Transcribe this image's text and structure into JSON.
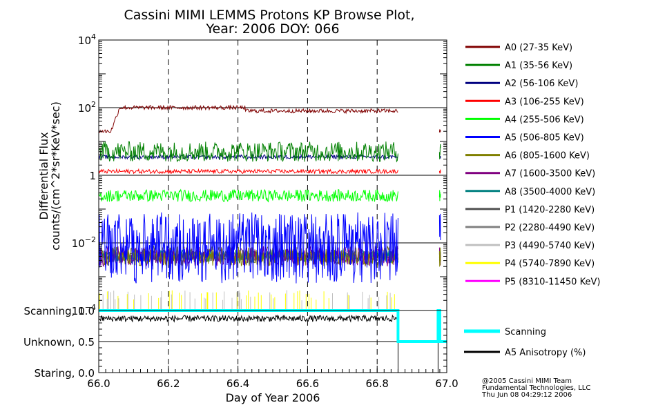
{
  "chart_data": {
    "type": "line",
    "title": [
      "Cassini MIMI LEMMS Protons KP Browse Plot,",
      "Year: 2006 DOY: 066"
    ],
    "xlabel": "Day of Year 2006",
    "xlim": [
      66.0,
      67.0
    ],
    "x_ticks": [
      "66.0",
      "66.2",
      "66.4",
      "66.6",
      "66.8",
      "67.0"
    ],
    "top_panel": {
      "ylabel": [
        "Differential Flux",
        "counts/(cm^2*sr*KeV*sec)"
      ],
      "yscale": "log",
      "ylim": [
        0.0001,
        10000
      ],
      "y_ticks": [
        {
          "base": "10",
          "exp": "4",
          "value": 10000
        },
        {
          "base": "10",
          "exp": "2",
          "value": 100
        },
        {
          "base": "1",
          "exp": "",
          "value": 1
        },
        {
          "base": "10",
          "exp": "−2",
          "value": 0.01
        },
        {
          "base": "10",
          "exp": "−4",
          "value": 0.0001
        }
      ],
      "data_gap": [
        66.86,
        66.975
      ],
      "series": [
        {
          "name": "A0 (27-35 KeV)",
          "color": "#800000",
          "level": 100,
          "start_level": 20,
          "rise_end": 66.06,
          "late_level": 80,
          "noise": 0.06
        },
        {
          "name": "A1 (35-56 KeV)",
          "color": "#008000",
          "level": 5,
          "noise": 0.3
        },
        {
          "name": "A2 (56-106 KeV)",
          "color": "#000080",
          "level": 3.5,
          "noise": 0.06
        },
        {
          "name": "A3 (106-255 KeV)",
          "color": "#ff0000",
          "level": 1.3,
          "noise": 0.06
        },
        {
          "name": "A4 (255-506 KeV)",
          "color": "#00ff00",
          "level": 0.25,
          "noise": 0.18
        },
        {
          "name": "A5 (506-805 KeV)",
          "color": "#0000ff",
          "level": 0.02,
          "noise": 0.6,
          "spiky": true
        },
        {
          "name": "A6 (805-1600 KeV)",
          "color": "#808000",
          "level": 0.004,
          "noise": 0.3
        },
        {
          "name": "A7 (1600-3500 KeV)",
          "color": "#800080",
          "level": 0.004,
          "noise": 0.3
        },
        {
          "name": "A8 (3500-4000 KeV)",
          "color": "#008080",
          "level": 0.004,
          "noise": 0.2
        },
        {
          "name": "P1 (1420-2280 KeV)",
          "color": "#505050",
          "level": 0.004,
          "noise": 0.15
        },
        {
          "name": "P2 (2280-4490 KeV)",
          "color": "#808080",
          "level": 0.004,
          "noise": 0.15
        },
        {
          "name": "P3 (4490-5740 KeV)",
          "color": "#c0c0c0",
          "level": 0.0002,
          "noise": 0.1,
          "sparse": true
        },
        {
          "name": "P4 (5740-7890 KeV)",
          "color": "#ffff00",
          "level": 0.0002,
          "noise": 0.1,
          "sparse": true
        },
        {
          "name": "P5 (8310-11450 KeV)",
          "color": "#ff00ff",
          "level": null,
          "noise": 0
        }
      ]
    },
    "bottom_panel": {
      "ylim": [
        0.0,
        1.0
      ],
      "y_ticks": [
        {
          "label": "Scanning, 1.0",
          "value": 1.0
        },
        {
          "label": "Unknown, 0.5",
          "value": 0.5
        },
        {
          "label": "Staring, 0.0",
          "value": 0.0
        }
      ],
      "series": [
        {
          "name": "Scanning",
          "color": "#00ffff",
          "steps": [
            [
              66.0,
              1.0
            ],
            [
              66.86,
              1.0
            ],
            [
              66.86,
              0.5
            ],
            [
              66.975,
              0.5
            ],
            [
              66.975,
              1.0
            ],
            [
              66.98,
              1.0
            ],
            [
              66.98,
              0.5
            ],
            [
              67.0,
              0.5
            ]
          ]
        },
        {
          "name": "A5 Anisotropy (%)",
          "color": "#000000",
          "level": 0.87,
          "noise": 0.05,
          "end": 66.86
        }
      ]
    },
    "credits": [
      "@2005 Cassini MIMI Team",
      "Fundamental Technologies, LLC",
      "Thu Jun 08 04:29:12 2006"
    ]
  }
}
